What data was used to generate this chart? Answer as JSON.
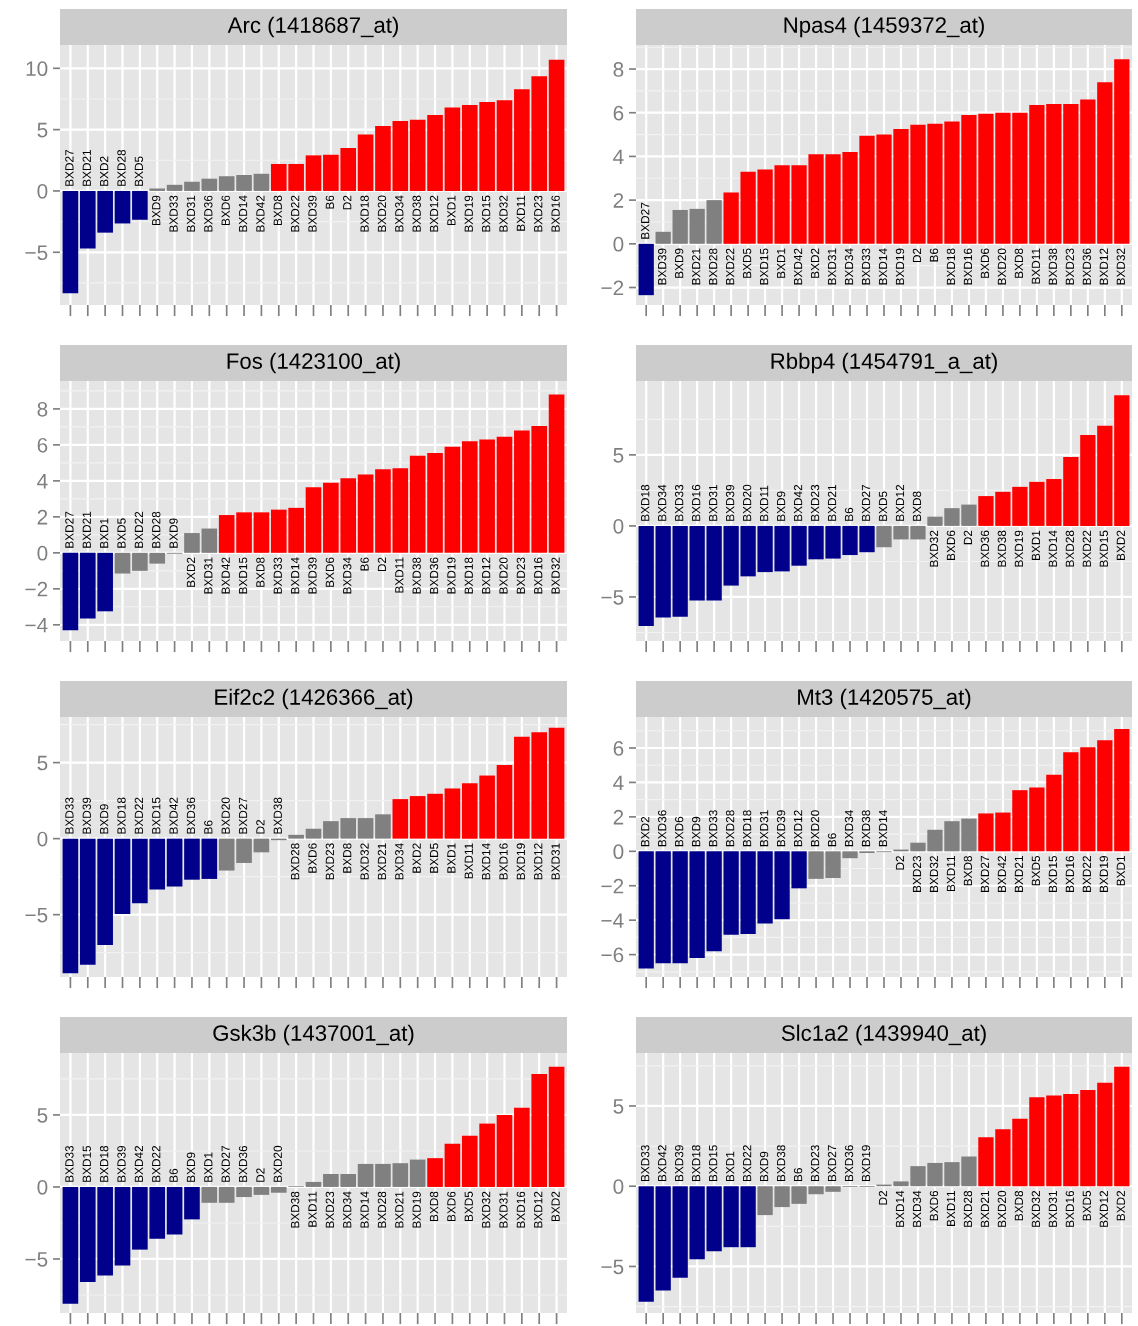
{
  "chart_data": [
    {
      "type": "bar",
      "title": "Arc (1418687_at)",
      "grid": true,
      "tick_labels": "y",
      "ylim": [
        -9.3,
        11.9
      ],
      "yticks": [
        -5,
        0,
        5,
        10
      ],
      "categories": [
        "BXD27",
        "BXD21",
        "BXD2",
        "BXD28",
        "BXD5",
        "BXD9",
        "BXD33",
        "BXD31",
        "BXD36",
        "BXD6",
        "BXD14",
        "BXD42",
        "BXD8",
        "BXD22",
        "BXD39",
        "B6",
        "D2",
        "BXD18",
        "BXD20",
        "BXD34",
        "BXD38",
        "BXD12",
        "BXD1",
        "BXD19",
        "BXD15",
        "BXD32",
        "BXD11",
        "BXD23",
        "BXD16"
      ],
      "values": [
        -8.35,
        -4.7,
        -3.4,
        -2.65,
        -2.35,
        0.2,
        0.5,
        0.75,
        1.0,
        1.2,
        1.3,
        1.4,
        2.2,
        2.2,
        2.9,
        2.95,
        3.5,
        4.6,
        5.3,
        5.7,
        5.8,
        6.2,
        6.8,
        7.0,
        7.25,
        7.4,
        8.3,
        9.35,
        10.7
      ],
      "colors": [
        "#00008b",
        "#00008b",
        "#00008b",
        "#00008b",
        "#00008b",
        "#808080",
        "#808080",
        "#808080",
        "#808080",
        "#808080",
        "#808080",
        "#808080",
        "#ff0000",
        "#ff0000",
        "#ff0000",
        "#ff0000",
        "#ff0000",
        "#ff0000",
        "#ff0000",
        "#ff0000",
        "#ff0000",
        "#ff0000",
        "#ff0000",
        "#ff0000",
        "#ff0000",
        "#ff0000",
        "#ff0000",
        "#ff0000",
        "#ff0000"
      ]
    },
    {
      "type": "bar",
      "title": "Npas4 (1459372_at)",
      "grid": true,
      "tick_labels": "y",
      "ylim": [
        -2.8,
        9.1
      ],
      "yticks": [
        -2,
        0,
        2,
        4,
        6,
        8
      ],
      "categories": [
        "BXD27",
        "BXD39",
        "BXD9",
        "BXD21",
        "BXD28",
        "BXD22",
        "BXD5",
        "BXD15",
        "BXD1",
        "BXD42",
        "BXD2",
        "BXD31",
        "BXD34",
        "BXD33",
        "BXD14",
        "BXD19",
        "D2",
        "B6",
        "BXD18",
        "BXD16",
        "BXD6",
        "BXD20",
        "BXD8",
        "BXD11",
        "BXD38",
        "BXD23",
        "BXD36",
        "BXD12",
        "BXD32"
      ],
      "values": [
        -2.35,
        0.55,
        1.55,
        1.6,
        2.0,
        2.35,
        3.3,
        3.4,
        3.6,
        3.6,
        4.1,
        4.1,
        4.2,
        4.95,
        5.0,
        5.25,
        5.45,
        5.5,
        5.6,
        5.9,
        5.95,
        6.0,
        6.0,
        6.35,
        6.4,
        6.4,
        6.6,
        7.4,
        8.45
      ],
      "colors": [
        "#00008b",
        "#808080",
        "#808080",
        "#808080",
        "#808080",
        "#ff0000",
        "#ff0000",
        "#ff0000",
        "#ff0000",
        "#ff0000",
        "#ff0000",
        "#ff0000",
        "#ff0000",
        "#ff0000",
        "#ff0000",
        "#ff0000",
        "#ff0000",
        "#ff0000",
        "#ff0000",
        "#ff0000",
        "#ff0000",
        "#ff0000",
        "#ff0000",
        "#ff0000",
        "#ff0000",
        "#ff0000",
        "#ff0000",
        "#ff0000",
        "#ff0000"
      ]
    },
    {
      "type": "bar",
      "title": "Fos (1423100_at)",
      "grid": true,
      "tick_labels": "y",
      "ylim": [
        -4.9,
        9.55
      ],
      "yticks": [
        -4,
        -2,
        0,
        2,
        4,
        6,
        8
      ],
      "categories": [
        "BXD27",
        "BXD21",
        "BXD1",
        "BXD5",
        "BXD22",
        "BXD28",
        "BXD9",
        "BXD2",
        "BXD31",
        "BXD42",
        "BXD15",
        "BXD8",
        "BXD33",
        "BXD14",
        "BXD39",
        "BXD6",
        "BXD34",
        "B6",
        "D2",
        "BXD11",
        "BXD38",
        "BXD36",
        "BXD19",
        "BXD18",
        "BXD12",
        "BXD20",
        "BXD23",
        "BXD16",
        "BXD32"
      ],
      "values": [
        -4.3,
        -3.65,
        -3.25,
        -1.15,
        -1.0,
        -0.6,
        -0.05,
        1.1,
        1.35,
        2.1,
        2.25,
        2.25,
        2.4,
        2.5,
        3.65,
        3.9,
        4.15,
        4.35,
        4.65,
        4.7,
        5.4,
        5.55,
        5.9,
        6.2,
        6.3,
        6.45,
        6.8,
        7.05,
        8.8
      ],
      "colors": [
        "#00008b",
        "#00008b",
        "#00008b",
        "#808080",
        "#808080",
        "#808080",
        "#808080",
        "#808080",
        "#808080",
        "#ff0000",
        "#ff0000",
        "#ff0000",
        "#ff0000",
        "#ff0000",
        "#ff0000",
        "#ff0000",
        "#ff0000",
        "#ff0000",
        "#ff0000",
        "#ff0000",
        "#ff0000",
        "#ff0000",
        "#ff0000",
        "#ff0000",
        "#ff0000",
        "#ff0000",
        "#ff0000",
        "#ff0000",
        "#ff0000"
      ]
    },
    {
      "type": "bar",
      "title": "Rbbp4 (1454791_a_at)",
      "grid": true,
      "tick_labels": "y",
      "ylim": [
        -8.1,
        10.2
      ],
      "yticks": [
        -5,
        0,
        5
      ],
      "categories": [
        "BXD18",
        "BXD34",
        "BXD33",
        "BXD16",
        "BXD31",
        "BXD39",
        "BXD20",
        "BXD11",
        "BXD9",
        "BXD42",
        "BXD23",
        "BXD21",
        "B6",
        "BXD27",
        "BXD5",
        "BXD12",
        "BXD8",
        "BXD32",
        "BXD6",
        "D2",
        "BXD36",
        "BXD38",
        "BXD19",
        "BXD1",
        "BXD14",
        "BXD28",
        "BXD22",
        "BXD15",
        "BXD2"
      ],
      "values": [
        -7.05,
        -6.45,
        -6.4,
        -5.25,
        -5.25,
        -4.2,
        -3.55,
        -3.25,
        -3.2,
        -2.8,
        -2.35,
        -2.3,
        -2.05,
        -1.85,
        -1.5,
        -0.95,
        -0.95,
        0.65,
        1.25,
        1.5,
        2.1,
        2.4,
        2.75,
        3.1,
        3.3,
        4.85,
        6.4,
        7.05,
        9.2
      ],
      "colors": [
        "#00008b",
        "#00008b",
        "#00008b",
        "#00008b",
        "#00008b",
        "#00008b",
        "#00008b",
        "#00008b",
        "#00008b",
        "#00008b",
        "#00008b",
        "#00008b",
        "#00008b",
        "#00008b",
        "#808080",
        "#808080",
        "#808080",
        "#808080",
        "#808080",
        "#808080",
        "#ff0000",
        "#ff0000",
        "#ff0000",
        "#ff0000",
        "#ff0000",
        "#ff0000",
        "#ff0000",
        "#ff0000",
        "#ff0000"
      ]
    },
    {
      "type": "bar",
      "title": "Eif2c2 (1426366_at)",
      "grid": true,
      "tick_labels": "y",
      "ylim": [
        -9.1,
        8.0
      ],
      "yticks": [
        -5,
        0,
        5
      ],
      "categories": [
        "BXD33",
        "BXD39",
        "BXD9",
        "BXD18",
        "BXD22",
        "BXD15",
        "BXD42",
        "BXD36",
        "B6",
        "BXD20",
        "BXD27",
        "D2",
        "BXD38",
        "BXD28",
        "BXD6",
        "BXD23",
        "BXD8",
        "BXD32",
        "BXD21",
        "BXD34",
        "BXD2",
        "BXD5",
        "BXD1",
        "BXD11",
        "BXD14",
        "BXD16",
        "BXD19",
        "BXD12",
        "BXD31"
      ],
      "values": [
        -8.85,
        -8.3,
        -7.0,
        -4.95,
        -4.25,
        -3.35,
        -3.15,
        -2.7,
        -2.65,
        -2.1,
        -1.6,
        -0.9,
        -0.1,
        0.25,
        0.65,
        1.15,
        1.35,
        1.35,
        1.6,
        2.6,
        2.8,
        2.95,
        3.3,
        3.65,
        4.15,
        4.85,
        6.7,
        7.0,
        7.3
      ],
      "colors": [
        "#00008b",
        "#00008b",
        "#00008b",
        "#00008b",
        "#00008b",
        "#00008b",
        "#00008b",
        "#00008b",
        "#00008b",
        "#808080",
        "#808080",
        "#808080",
        "#808080",
        "#808080",
        "#808080",
        "#808080",
        "#808080",
        "#808080",
        "#808080",
        "#ff0000",
        "#ff0000",
        "#ff0000",
        "#ff0000",
        "#ff0000",
        "#ff0000",
        "#ff0000",
        "#ff0000",
        "#ff0000",
        "#ff0000"
      ]
    },
    {
      "type": "bar",
      "title": "Mt3 (1420575_at)",
      "grid": true,
      "tick_labels": "y",
      "ylim": [
        -7.3,
        7.8
      ],
      "yticks": [
        -6,
        -4,
        -2,
        0,
        2,
        4,
        6
      ],
      "categories": [
        "BXD2",
        "BXD36",
        "BXD6",
        "BXD9",
        "BXD33",
        "BXD28",
        "BXD18",
        "BXD31",
        "BXD39",
        "BXD12",
        "BXD20",
        "B6",
        "BXD34",
        "BXD38",
        "BXD14",
        "D2",
        "BXD23",
        "BXD32",
        "BXD11",
        "BXD8",
        "BXD27",
        "BXD42",
        "BXD21",
        "BXD5",
        "BXD15",
        "BXD16",
        "BXD22",
        "BXD19",
        "BXD1"
      ],
      "values": [
        -6.8,
        -6.5,
        -6.5,
        -6.2,
        -5.8,
        -4.85,
        -4.8,
        -4.2,
        -3.95,
        -2.15,
        -1.6,
        -1.55,
        -0.4,
        -0.1,
        -0.05,
        0.1,
        0.5,
        1.25,
        1.75,
        1.9,
        2.2,
        2.25,
        3.55,
        3.7,
        4.45,
        5.75,
        6.05,
        6.45,
        7.1
      ],
      "colors": [
        "#00008b",
        "#00008b",
        "#00008b",
        "#00008b",
        "#00008b",
        "#00008b",
        "#00008b",
        "#00008b",
        "#00008b",
        "#00008b",
        "#808080",
        "#808080",
        "#808080",
        "#808080",
        "#808080",
        "#808080",
        "#808080",
        "#808080",
        "#808080",
        "#808080",
        "#ff0000",
        "#ff0000",
        "#ff0000",
        "#ff0000",
        "#ff0000",
        "#ff0000",
        "#ff0000",
        "#ff0000",
        "#ff0000"
      ]
    },
    {
      "type": "bar",
      "title": "Gsk3b (1437001_at)",
      "grid": true,
      "tick_labels": "y",
      "ylim": [
        -8.75,
        9.3
      ],
      "yticks": [
        -5,
        0,
        5
      ],
      "categories": [
        "BXD33",
        "BXD15",
        "BXD18",
        "BXD39",
        "BXD42",
        "BXD22",
        "B6",
        "BXD9",
        "BXD1",
        "BXD27",
        "BXD36",
        "D2",
        "BXD20",
        "BXD38",
        "BXD11",
        "BXD23",
        "BXD34",
        "BXD14",
        "BXD28",
        "BXD21",
        "BXD19",
        "BXD8",
        "BXD6",
        "BXD5",
        "BXD32",
        "BXD31",
        "BXD16",
        "BXD12",
        "BXD2"
      ],
      "values": [
        -8.1,
        -6.6,
        -6.15,
        -5.45,
        -4.35,
        -3.6,
        -3.3,
        -2.25,
        -1.1,
        -1.1,
        -0.7,
        -0.55,
        -0.4,
        0.05,
        0.35,
        0.9,
        0.9,
        1.6,
        1.6,
        1.65,
        1.9,
        2.0,
        3.0,
        3.55,
        4.4,
        5.0,
        5.5,
        7.85,
        8.35
      ],
      "colors": [
        "#00008b",
        "#00008b",
        "#00008b",
        "#00008b",
        "#00008b",
        "#00008b",
        "#00008b",
        "#00008b",
        "#808080",
        "#808080",
        "#808080",
        "#808080",
        "#808080",
        "#808080",
        "#808080",
        "#808080",
        "#808080",
        "#808080",
        "#808080",
        "#808080",
        "#808080",
        "#ff0000",
        "#ff0000",
        "#ff0000",
        "#ff0000",
        "#ff0000",
        "#ff0000",
        "#ff0000",
        "#ff0000"
      ]
    },
    {
      "type": "bar",
      "title": "Slc1a2 (1439940_at)",
      "grid": true,
      "tick_labels": "y",
      "ylim": [
        -7.9,
        8.3
      ],
      "yticks": [
        -5,
        0,
        5
      ],
      "categories": [
        "BXD33",
        "BXD42",
        "BXD39",
        "BXD18",
        "BXD15",
        "BXD1",
        "BXD22",
        "BXD9",
        "BXD38",
        "B6",
        "BXD23",
        "BXD27",
        "BXD36",
        "BXD19",
        "D2",
        "BXD14",
        "BXD34",
        "BXD6",
        "BXD11",
        "BXD28",
        "BXD21",
        "BXD20",
        "BXD8",
        "BXD32",
        "BXD31",
        "BXD16",
        "BXD5",
        "BXD12",
        "BXD2"
      ],
      "values": [
        -7.2,
        -6.5,
        -5.7,
        -4.55,
        -4.05,
        -3.8,
        -3.8,
        -1.8,
        -1.3,
        -1.1,
        -0.5,
        -0.35,
        -0.05,
        -0.05,
        0.1,
        0.3,
        1.25,
        1.45,
        1.5,
        1.85,
        3.05,
        3.55,
        4.2,
        5.55,
        5.65,
        5.75,
        6.0,
        6.45,
        7.45
      ],
      "colors": [
        "#00008b",
        "#00008b",
        "#00008b",
        "#00008b",
        "#00008b",
        "#00008b",
        "#00008b",
        "#808080",
        "#808080",
        "#808080",
        "#808080",
        "#808080",
        "#808080",
        "#808080",
        "#808080",
        "#808080",
        "#808080",
        "#808080",
        "#808080",
        "#808080",
        "#ff0000",
        "#ff0000",
        "#ff0000",
        "#ff0000",
        "#ff0000",
        "#ff0000",
        "#ff0000",
        "#ff0000",
        "#ff0000"
      ]
    }
  ]
}
